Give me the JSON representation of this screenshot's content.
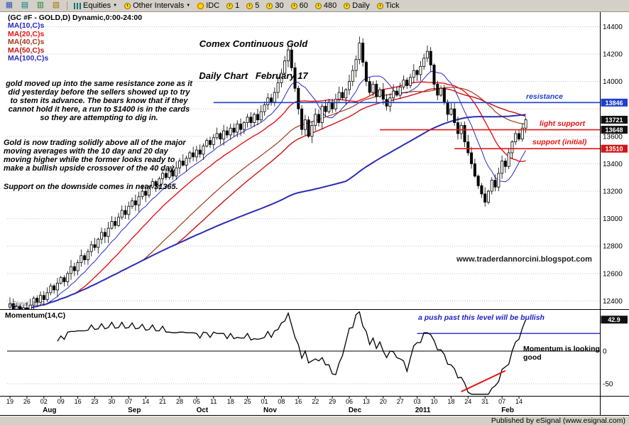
{
  "window": {
    "statusbar_text": "Published by eSignal (www.esignal.com)"
  },
  "toolbar": {
    "icon_buttons": [
      "quote-board-icon",
      "chart-window-icon",
      "detail-window-icon",
      "layout-window-icon"
    ],
    "items": [
      {
        "label": "Equities",
        "icon": "bars-icon",
        "arrow": true
      },
      {
        "label": "Other Intervals",
        "icon": "clock-icon",
        "arrow": true
      },
      {
        "label": "IDC",
        "icon": "sun-icon",
        "arrow": false
      },
      {
        "label": "1",
        "icon": "clock-icon",
        "arrow": false
      },
      {
        "label": "5",
        "icon": "clock-icon",
        "arrow": false
      },
      {
        "label": "30",
        "icon": "clock-icon",
        "arrow": false
      },
      {
        "label": "60",
        "icon": "clock-icon",
        "arrow": false
      },
      {
        "label": "480",
        "icon": "clock-icon",
        "arrow": false
      },
      {
        "label": "Daily",
        "icon": "clock-icon",
        "arrow": false
      },
      {
        "label": "Tick",
        "icon": "clock-icon",
        "arrow": false
      }
    ]
  },
  "legend": {
    "symbol": "(GC #F - GOLD,D) Dynamic,0:00-24:00",
    "mas": [
      {
        "label": "MA(10,C)s",
        "color": "#2929c8"
      },
      {
        "label": "MA(20,C)s",
        "color": "#e61414"
      },
      {
        "label": "MA(40,C)s",
        "color": "#a03a1a"
      },
      {
        "label": "MA(50,C)s",
        "color": "#c81414"
      },
      {
        "label": "MA(100,C)s",
        "color": "#2d2db4"
      }
    ]
  },
  "chart_title": {
    "line1": "Comex Continuous Gold",
    "line2": "Daily Chart   February 17"
  },
  "annotations": {
    "para1": "gold moved up into the same resistance zone as it did yesterday before the sellers showed up to try to stem its advance. The bears know that if they cannot hold it here, a run to $1400 is in the cards so they are attempting to dig in.",
    "para2": "Gold is now trading solidly above all of the major moving averages with the 10 day and 20 day moving higher while the former looks ready to make a bullish upside crossover of the 40 day.",
    "para3": "Support on the downside comes in near $1365.",
    "resistance_label": "resistance",
    "light_support_label": "light support",
    "support_initial_label": "support (initial)",
    "watermark": "www.traderdannorcini.blogspot.com",
    "copyright": "eSignal, 2009"
  },
  "momentum": {
    "legend": "Momentum(14,C)",
    "blue_note": "a push past this level will be bullish",
    "good_note": "Momentum is looking good",
    "value_box": "42.9",
    "tick_labels": [
      "0",
      "-50"
    ]
  },
  "price_boxes": [
    {
      "label": "13846",
      "price": 13846,
      "color": "#1f3fcc"
    },
    {
      "label": "13721",
      "price": 13721,
      "color": "#101010"
    },
    {
      "label": "13648",
      "price": 13648,
      "color": "#101010"
    },
    {
      "label": "13510",
      "price": 13510,
      "color": "#d01818"
    }
  ],
  "chart_data": {
    "type": "candlestick",
    "title": "Comex Continuous Gold Daily Chart February 17",
    "y_ticks": [
      14400,
      14200,
      14000,
      13600,
      13400,
      13200,
      13000,
      12800,
      12600,
      12400
    ],
    "y_range": [
      12340,
      14480
    ],
    "x_tick_labels": [
      "19",
      "26",
      "02",
      "09",
      "16",
      "23",
      "30",
      "07",
      "14",
      "21",
      "28",
      "05",
      "11",
      "18",
      "25",
      "01",
      "08",
      "16",
      "22",
      "29",
      "06",
      "13",
      "20",
      "27",
      "03",
      "10",
      "18",
      "24",
      "31",
      "07",
      "14"
    ],
    "month_labels": [
      {
        "label": "Aug",
        "tick": 2
      },
      {
        "label": "Sep",
        "tick": 7
      },
      {
        "label": "Oct",
        "tick": 11
      },
      {
        "label": "Nov",
        "tick": 15
      },
      {
        "label": "Dec",
        "tick": 20
      },
      {
        "label": "2011",
        "tick": 24
      },
      {
        "label": "Feb",
        "tick": 29
      }
    ],
    "closes": [
      12380,
      12340,
      12360,
      12310,
      12350,
      12320,
      12370,
      12420,
      12390,
      12440,
      12410,
      12460,
      12510,
      12480,
      12530,
      12570,
      12540,
      12600,
      12650,
      12620,
      12680,
      12730,
      12700,
      12760,
      12810,
      12790,
      12850,
      12900,
      12870,
      12930,
      12980,
      12950,
      13010,
      13060,
      13030,
      13090,
      13130,
      13100,
      13160,
      13200,
      13170,
      13230,
      13270,
      13240,
      13290,
      13330,
      13300,
      13350,
      13310,
      13370,
      13420,
      13390,
      13440,
      13480,
      13450,
      13500,
      13470,
      13530,
      13570,
      13540,
      13590,
      13620,
      13580,
      13640,
      13610,
      13660,
      13630,
      13690,
      13650,
      13700,
      13740,
      13700,
      13760,
      13720,
      13780,
      13830,
      13880,
      13850,
      13920,
      13990,
      14060,
      14150,
      14230,
      14100,
      13950,
      13800,
      13650,
      13720,
      13600,
      13680,
      13760,
      13700,
      13820,
      13780,
      13850,
      13800,
      13870,
      13920,
      13880,
      13940,
      14000,
      14080,
      14160,
      14280,
      14140,
      14000,
      13920,
      13980,
      13890,
      13940,
      13870,
      13820,
      13880,
      13930,
      13900,
      13960,
      14010,
      13970,
      14030,
      14080,
      14050,
      14110,
      14170,
      14220,
      14120,
      13980,
      13900,
      13950,
      13850,
      13760,
      13800,
      13700,
      13620,
      13680,
      13560,
      13480,
      13400,
      13310,
      13240,
      13180,
      13120,
      13200,
      13280,
      13230,
      13330,
      13420,
      13380,
      13480,
      13560,
      13620,
      13580,
      13660,
      13721
    ],
    "moving_averages": [
      {
        "period": 10,
        "color": "#2929c8",
        "width": 1
      },
      {
        "period": 20,
        "color": "#e61414",
        "width": 1.4
      },
      {
        "period": 40,
        "color": "#a03a1a",
        "width": 1.2
      },
      {
        "period": 50,
        "color": "#c81414",
        "width": 1.4
      },
      {
        "period": 100,
        "color": "#2d2db4",
        "width": 2
      }
    ],
    "momentum_period": 14,
    "momentum_ticks": [
      0,
      -50
    ],
    "overlays": {
      "resistance": {
        "price": 13846,
        "from_index": 60,
        "color": "#1f3fcc"
      },
      "light_support": {
        "price": 13648,
        "from_index": 109,
        "color": "#e61414"
      },
      "support_initial": {
        "price": 13510,
        "from_index": 131,
        "color": "#e61414"
      },
      "momentum_level": {
        "value": 27,
        "from_index": 120,
        "color": "#2222cc"
      },
      "momentum_trendline": {
        "from_index": 133,
        "from_value": -62,
        "to_index": 146,
        "to_value": -30,
        "color": "#e61414"
      }
    }
  }
}
